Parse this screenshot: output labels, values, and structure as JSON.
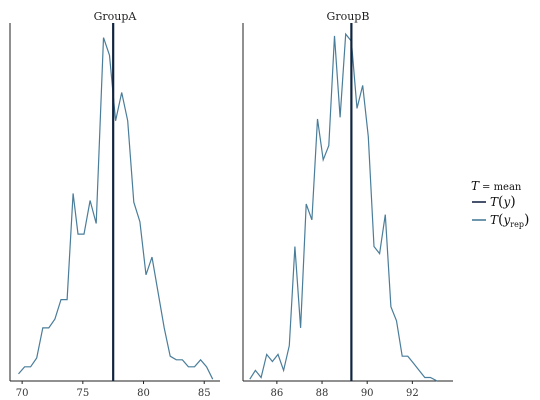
{
  "chart_data": {
    "type": "line",
    "legend": {
      "placement": "right",
      "stat_var": "T",
      "stat_eq": "= mean",
      "entries": [
        {
          "fn": "T",
          "arg": "y",
          "sub": "",
          "color": "#1b2a4a"
        },
        {
          "fn": "T",
          "arg": "y",
          "sub": "rep",
          "color": "#4a7d9a"
        }
      ]
    },
    "panels": [
      {
        "title": "GroupA",
        "xlim": [
          69,
          86.3
        ],
        "ylim": [
          0,
          1
        ],
        "xticks": [
          70,
          75,
          80,
          85
        ],
        "xtick_labels": [
          "70",
          "75",
          "80",
          "85"
        ],
        "observed_mean": 77.5,
        "series": {
          "color": "#4a7d9a",
          "x": [
            69.7,
            70.2,
            70.7,
            71.2,
            71.7,
            72.2,
            72.7,
            73.2,
            73.7,
            74.2,
            74.6,
            75.1,
            75.6,
            76.1,
            76.7,
            77.2,
            77.7,
            78.2,
            78.7,
            79.2,
            79.7,
            80.2,
            80.7,
            81.2,
            81.7,
            82.2,
            82.7,
            83.2,
            83.7,
            84.2,
            84.7,
            85.2,
            85.7
          ],
          "y": [
            0.02,
            0.04,
            0.04,
            0.065,
            0.15,
            0.15,
            0.175,
            0.23,
            0.23,
            0.53,
            0.415,
            0.415,
            0.51,
            0.445,
            0.97,
            0.92,
            0.735,
            0.815,
            0.735,
            0.505,
            0.45,
            0.3,
            0.35,
            0.25,
            0.15,
            0.07,
            0.06,
            0.06,
            0.04,
            0.04,
            0.06,
            0.04,
            0.005
          ]
        }
      },
      {
        "title": "GroupB",
        "xlim": [
          84.5,
          93.8
        ],
        "ylim": [
          0,
          1
        ],
        "xticks": [
          86,
          88,
          90,
          92
        ],
        "xtick_labels": [
          "86",
          "88",
          "90",
          "92"
        ],
        "observed_mean": 89.3,
        "series": {
          "color": "#4a7d9a",
          "x": [
            84.8,
            85.05,
            85.3,
            85.55,
            85.8,
            86.05,
            86.3,
            86.55,
            86.8,
            87.05,
            87.3,
            87.55,
            87.8,
            88.05,
            88.3,
            88.55,
            88.8,
            89.05,
            89.3,
            89.55,
            89.8,
            90.05,
            90.3,
            90.55,
            90.8,
            91.05,
            91.3,
            91.55,
            91.8,
            92.05,
            92.3,
            92.55,
            92.8,
            93.1
          ],
          "y": [
            0.005,
            0.03,
            0.01,
            0.075,
            0.055,
            0.075,
            0.03,
            0.1,
            0.38,
            0.15,
            0.5,
            0.455,
            0.74,
            0.625,
            0.665,
            0.975,
            0.745,
            0.98,
            0.96,
            0.77,
            0.835,
            0.69,
            0.38,
            0.36,
            0.47,
            0.21,
            0.17,
            0.07,
            0.07,
            0.05,
            0.03,
            0.01,
            0.01,
            0.0
          ]
        }
      }
    ]
  }
}
